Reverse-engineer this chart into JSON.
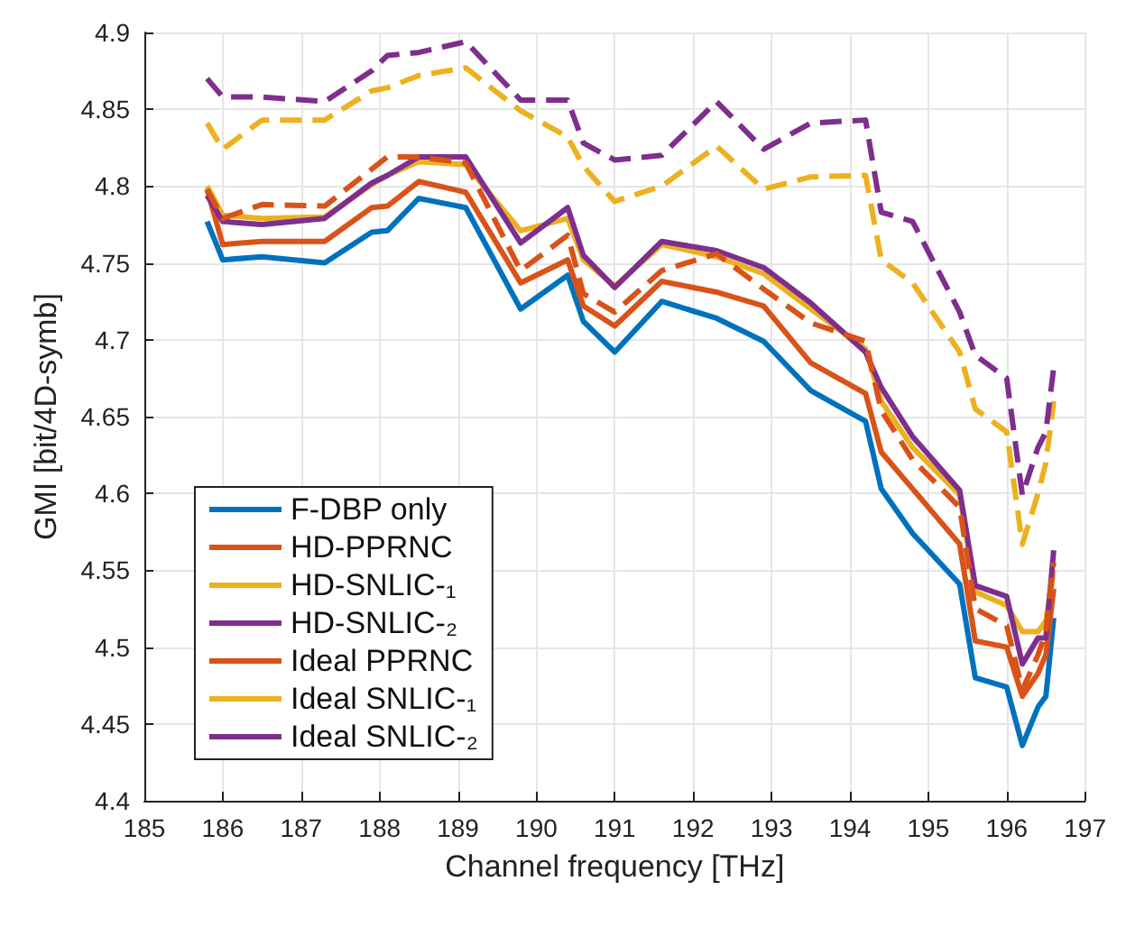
{
  "chart_data": {
    "type": "line",
    "xlabel": "Channel frequency [THz]",
    "ylabel": "GMI [bit/4D-symb]",
    "x": [
      185.8,
      186,
      186.5,
      187.3,
      187.9,
      188.1,
      188.5,
      189.1,
      189.8,
      190.4,
      190.6,
      191,
      191.6,
      192.3,
      192.9,
      193.5,
      194.2,
      194.4,
      194.8,
      195.4,
      195.6,
      196,
      196.2,
      196.4,
      196.5,
      196.6
    ],
    "xlim": [
      185,
      197
    ],
    "xticks": [
      185,
      186,
      187,
      188,
      189,
      190,
      191,
      192,
      193,
      194,
      195,
      196,
      197
    ],
    "ylim": [
      4.4,
      4.9
    ],
    "yticks": [
      {
        "value": 4.4,
        "label": "4.4"
      },
      {
        "value": 4.45,
        "label": "4.45"
      },
      {
        "value": 4.5,
        "label": "4.5"
      },
      {
        "value": 4.55,
        "label": "4.55"
      },
      {
        "value": 4.6,
        "label": "4.6"
      },
      {
        "value": 4.65,
        "label": "4.65"
      },
      {
        "value": 4.7,
        "label": "4.7"
      },
      {
        "value": 4.75,
        "label": "4.75"
      },
      {
        "value": 4.8,
        "label": "4.8"
      },
      {
        "value": 4.85,
        "label": "4.85"
      },
      {
        "value": 4.9,
        "label": "4.9"
      }
    ],
    "grid": true,
    "legend": "bottom left",
    "marker": "none",
    "series": [
      {
        "name": "F-DBP only",
        "color": "#0072bd",
        "line_style": "solid",
        "values": [
          4.777,
          4.752,
          4.754,
          4.75,
          4.77,
          4.771,
          4.792,
          4.786,
          4.72,
          4.742,
          4.712,
          4.692,
          4.725,
          4.714,
          4.699,
          4.667,
          4.647,
          4.603,
          4.574,
          4.541,
          4.48,
          4.474,
          4.436,
          4.461,
          4.468,
          4.519
        ]
      },
      {
        "name": "HD-PPRNC",
        "color": "#d95319",
        "line_style": "solid",
        "values": [
          4.798,
          4.762,
          4.764,
          4.764,
          4.786,
          4.787,
          4.803,
          4.796,
          4.737,
          4.752,
          4.722,
          4.709,
          4.738,
          4.731,
          4.722,
          4.685,
          4.665,
          4.627,
          4.603,
          4.567,
          4.504,
          4.5,
          4.468,
          4.483,
          4.495,
          4.538
        ]
      },
      {
        "name": "HD-SNLIC-₁",
        "color": "#edb120",
        "line_style": "solid",
        "values": [
          4.8,
          4.781,
          4.779,
          4.78,
          4.801,
          4.807,
          4.816,
          4.814,
          4.771,
          4.779,
          4.752,
          4.735,
          4.762,
          4.754,
          4.743,
          4.72,
          4.694,
          4.66,
          4.63,
          4.599,
          4.536,
          4.527,
          4.51,
          4.51,
          4.517,
          4.55
        ]
      },
      {
        "name": "HD-SNLIC-₂",
        "color": "#7e2f8e",
        "line_style": "solid",
        "values": [
          4.794,
          4.777,
          4.775,
          4.779,
          4.802,
          4.807,
          4.819,
          4.819,
          4.763,
          4.786,
          4.755,
          4.734,
          4.764,
          4.758,
          4.747,
          4.724,
          4.692,
          4.669,
          4.637,
          4.602,
          4.54,
          4.533,
          4.489,
          4.506,
          4.506,
          4.563
        ]
      },
      {
        "name": "Ideal PPRNC",
        "color": "#d95319",
        "line_style": "dashed",
        "values": [
          4.798,
          4.779,
          4.788,
          4.787,
          4.811,
          4.819,
          4.819,
          4.815,
          4.745,
          4.768,
          4.73,
          4.718,
          4.745,
          4.756,
          4.733,
          4.711,
          4.699,
          4.654,
          4.622,
          4.591,
          4.525,
          4.514,
          4.472,
          4.495,
          4.51,
          4.555
        ]
      },
      {
        "name": "Ideal SNLIC-₁",
        "color": "#edb120",
        "line_style": "dashed",
        "values": [
          4.841,
          4.824,
          4.843,
          4.843,
          4.862,
          4.864,
          4.872,
          4.877,
          4.849,
          4.832,
          4.813,
          4.79,
          4.8,
          4.826,
          4.798,
          4.806,
          4.807,
          4.752,
          4.737,
          4.692,
          4.655,
          4.64,
          4.567,
          4.6,
          4.62,
          4.66
        ]
      },
      {
        "name": "Ideal SNLIC-₂",
        "color": "#7e2f8e",
        "line_style": "dashed",
        "values": [
          4.87,
          4.858,
          4.858,
          4.855,
          4.875,
          4.885,
          4.887,
          4.894,
          4.856,
          4.856,
          4.828,
          4.817,
          4.82,
          4.855,
          4.824,
          4.841,
          4.843,
          4.783,
          4.777,
          4.718,
          4.69,
          4.675,
          4.599,
          4.63,
          4.64,
          4.682
        ]
      }
    ]
  }
}
